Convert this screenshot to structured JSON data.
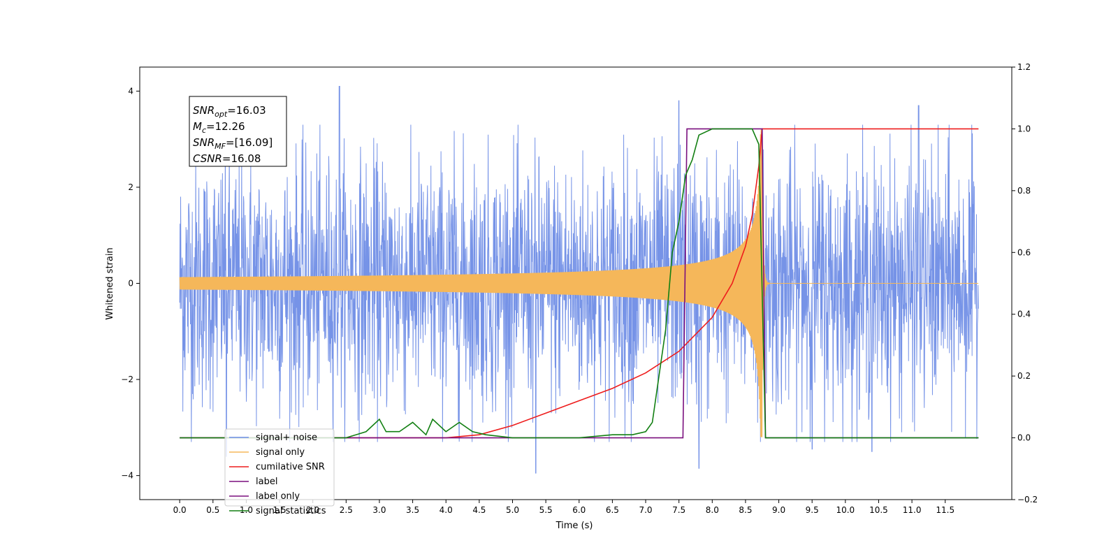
{
  "chart_data": {
    "type": "line",
    "xlabel": "Time (s)",
    "ylabel": "Whitened strain",
    "xlim": [
      -0.6,
      12.5
    ],
    "ylim": [
      -4.5,
      4.5
    ],
    "y2lim": [
      -0.2,
      1.2
    ],
    "x_ticks": [
      0.0,
      0.5,
      1.0,
      1.5,
      2.0,
      2.5,
      3.0,
      3.5,
      4.0,
      4.5,
      5.0,
      5.5,
      6.0,
      6.5,
      7.0,
      7.5,
      8.0,
      8.5,
      9.0,
      9.5,
      10.0,
      10.5,
      11.0,
      11.5
    ],
    "x_tick_labels": [
      "0.0",
      "0.5",
      "1.0",
      "1.5",
      "2.0",
      "2.5",
      "3.0",
      "3.5",
      "4.0",
      "4.5",
      "5.0",
      "5.5",
      "6.0",
      "6.5",
      "7.0",
      "7.5",
      "8.0",
      "8.5",
      "9.0",
      "9.5",
      "10.0",
      "10.5",
      "11.0",
      "11.5"
    ],
    "y_ticks": [
      -4,
      -2,
      0,
      2,
      4
    ],
    "y_tick_labels": [
      "−4",
      "−2",
      "0",
      "2",
      "4"
    ],
    "y2_ticks": [
      -0.2,
      0.0,
      0.2,
      0.4,
      0.6,
      0.8,
      1.0,
      1.2
    ],
    "y2_tick_labels": [
      "−0.2",
      "0.0",
      "0.2",
      "0.4",
      "0.6",
      "0.8",
      "1.0",
      "1.2"
    ],
    "grid": false,
    "legend_position": "lower-left",
    "series": [
      {
        "name": "signal+ noise",
        "color": "#6f8de6",
        "axis": "left",
        "envelope": {
          "x": [
            0.0,
            12.0
          ],
          "typical_amplitude": 1.8,
          "peaks": [
            [
              2.4,
              4.1
            ],
            [
              5.35,
              -3.95
            ],
            [
              7.8,
              -3.85
            ],
            [
              7.5,
              3.8
            ],
            [
              11.1,
              3.7
            ],
            [
              0.7,
              -3.6
            ],
            [
              9.5,
              -3.45
            ],
            [
              10.4,
              -3.5
            ]
          ]
        }
      },
      {
        "name": "signal only",
        "color": "#f5b75a",
        "axis": "left",
        "chirp": {
          "x": [
            0.0,
            12.0
          ],
          "merger_time": 8.75,
          "amplitude_at_4s": 0.05,
          "amplitude_at_8s": 0.5,
          "peak_amplitude": 3.2
        }
      },
      {
        "name": "cumilative SNR",
        "color": "#ee1c1c",
        "axis": "right",
        "x": [
          0.0,
          4.0,
          4.5,
          5.0,
          5.5,
          6.0,
          6.5,
          7.0,
          7.5,
          8.0,
          8.3,
          8.5,
          8.6,
          8.7,
          8.75,
          8.8,
          12.0
        ],
        "values": [
          0.0,
          0.0,
          0.01,
          0.04,
          0.08,
          0.12,
          0.16,
          0.21,
          0.28,
          0.39,
          0.5,
          0.62,
          0.72,
          0.88,
          1.0,
          1.0,
          1.0
        ]
      },
      {
        "name": "label",
        "color": "#7a0f7e",
        "axis": "right",
        "x": [
          0.0,
          7.56,
          7.62,
          8.75,
          8.8,
          12.0
        ],
        "values": [
          0.0,
          0.0,
          1.0,
          1.0,
          0.0,
          0.0
        ]
      },
      {
        "name": "label only",
        "color": "#7a0f7e",
        "axis": "right",
        "hidden_in_plot": true
      },
      {
        "name": "signal statistics",
        "color": "#127f12",
        "axis": "right",
        "x": [
          0.0,
          2.0,
          2.5,
          2.8,
          3.0,
          3.1,
          3.3,
          3.5,
          3.7,
          3.8,
          4.0,
          4.2,
          4.4,
          4.6,
          5.0,
          5.5,
          6.0,
          6.5,
          6.8,
          7.0,
          7.1,
          7.2,
          7.3,
          7.4,
          7.5,
          7.6,
          7.7,
          7.8,
          8.0,
          8.6,
          8.7,
          8.8,
          12.0
        ],
        "values": [
          0.0,
          0.0,
          0.0,
          0.02,
          0.06,
          0.02,
          0.02,
          0.05,
          0.01,
          0.06,
          0.02,
          0.05,
          0.02,
          0.01,
          0.0,
          0.0,
          0.0,
          0.01,
          0.01,
          0.02,
          0.05,
          0.2,
          0.35,
          0.6,
          0.7,
          0.85,
          0.9,
          0.98,
          1.0,
          1.0,
          0.95,
          0.0,
          0.0
        ]
      }
    ],
    "annotations": [
      {
        "prefix": "SNR",
        "sub": "opt",
        "value": "=16.03"
      },
      {
        "prefix": "M",
        "sub": "c",
        "value": "=12.26"
      },
      {
        "prefix": "SNR",
        "sub": "MF",
        "value": "=[16.09]"
      },
      {
        "prefix": "CSNR",
        "sub": "",
        "value": "=16.08"
      }
    ]
  }
}
